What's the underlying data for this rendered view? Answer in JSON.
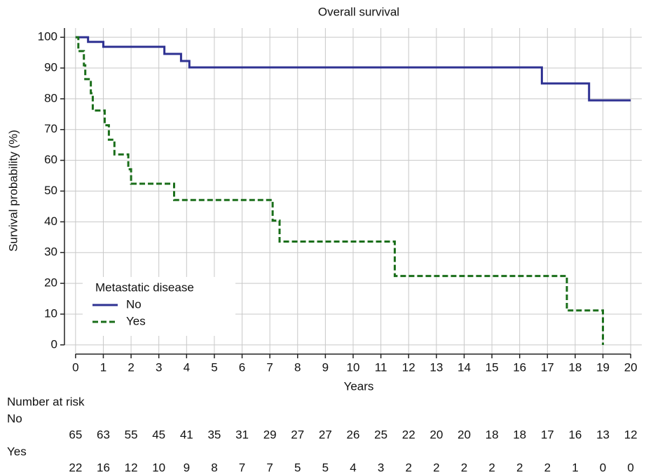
{
  "chart_data": {
    "type": "step",
    "title": "Overall survival",
    "xlabel": "Years",
    "ylabel": "Survival probability (%)",
    "xlim": [
      -0.4,
      20.4
    ],
    "ylim": [
      -3,
      103
    ],
    "xticks": [
      0,
      1,
      2,
      3,
      4,
      5,
      6,
      7,
      8,
      9,
      10,
      11,
      12,
      13,
      14,
      15,
      16,
      17,
      18,
      19,
      20
    ],
    "yticks": [
      0,
      10,
      20,
      30,
      40,
      50,
      60,
      70,
      80,
      90,
      100
    ],
    "grid": true,
    "legend_title": "Metastatic disease",
    "legend_position": "lower left",
    "series": [
      {
        "name": "No",
        "color": "#2e3192",
        "dash": false,
        "x": [
          0,
          0.45,
          1.0,
          3.2,
          3.8,
          4.1,
          16.8,
          18.5,
          20
        ],
        "values": [
          100,
          98.5,
          96.9,
          94.6,
          92.3,
          90.2,
          85,
          79.5,
          79.5
        ]
      },
      {
        "name": "Yes",
        "color": "#1a6e1a",
        "dash": true,
        "x": [
          0,
          0.1,
          0.3,
          0.35,
          0.55,
          0.62,
          1.05,
          1.2,
          1.4,
          1.9,
          2.0,
          3.55,
          7.1,
          7.35,
          11.5,
          17.7,
          19.0
        ],
        "values": [
          100,
          95.5,
          90.9,
          86.4,
          81.8,
          76.2,
          71.4,
          66.7,
          61.9,
          57.1,
          52.4,
          47.1,
          40.4,
          33.6,
          22.4,
          11.2,
          0
        ]
      }
    ],
    "risk_table": {
      "title": "Number at risk",
      "rows": [
        {
          "name": "No",
          "values": [
            65,
            63,
            55,
            45,
            41,
            35,
            31,
            29,
            27,
            27,
            26,
            25,
            22,
            20,
            20,
            18,
            18,
            17,
            16,
            13,
            12
          ]
        },
        {
          "name": "Yes",
          "values": [
            22,
            16,
            12,
            10,
            9,
            8,
            7,
            7,
            5,
            5,
            4,
            3,
            2,
            2,
            2,
            2,
            2,
            2,
            1,
            0,
            0
          ]
        }
      ]
    }
  }
}
